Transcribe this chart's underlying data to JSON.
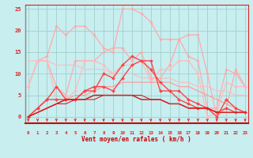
{
  "xlabel": "Vent moyen/en rafales ( km/h )",
  "x_ticks": [
    0,
    1,
    2,
    3,
    4,
    5,
    6,
    7,
    8,
    9,
    10,
    11,
    12,
    13,
    14,
    15,
    16,
    17,
    18,
    19,
    20,
    21,
    22,
    23
  ],
  "ylim": [
    -1.5,
    26
  ],
  "xlim": [
    -0.3,
    23.3
  ],
  "bg_color": "#c8eef0",
  "grid_color": "#a0d0cc",
  "series": [
    {
      "data": [
        7,
        13,
        14,
        21,
        19,
        21,
        21,
        19,
        16,
        15,
        25,
        25,
        24,
        22,
        18,
        18,
        18,
        19,
        19,
        10,
        0,
        2,
        11,
        7
      ],
      "color": "#ffaaaa",
      "marker": "D",
      "markersize": 1.8,
      "linewidth": 0.9,
      "alpha": 1.0
    },
    {
      "data": [
        7,
        13,
        13,
        7,
        5,
        13,
        13,
        13,
        15,
        16,
        16,
        13,
        15,
        9,
        9,
        12,
        18,
        14,
        13,
        2,
        2,
        11,
        10,
        7
      ],
      "color": "#ffaaaa",
      "marker": "D",
      "markersize": 1.8,
      "linewidth": 0.9,
      "alpha": 1.0
    },
    {
      "data": [
        7,
        13,
        13,
        4,
        4,
        6,
        13,
        13,
        12,
        10,
        12,
        12,
        13,
        8,
        11,
        11,
        13,
        13,
        10,
        0,
        1,
        8,
        7,
        7
      ],
      "color": "#ffbbbb",
      "marker": "D",
      "markersize": 1.8,
      "linewidth": 0.9,
      "alpha": 1.0
    },
    {
      "data": [
        13,
        13,
        13,
        12,
        12,
        12,
        11,
        11,
        11,
        10,
        10,
        10,
        9,
        9,
        9,
        9,
        8,
        8,
        7,
        7,
        6,
        6,
        5,
        5
      ],
      "color": "#ffbbbb",
      "marker": null,
      "markersize": 0,
      "linewidth": 0.9,
      "alpha": 0.9
    },
    {
      "data": [
        0,
        1,
        2,
        3,
        4,
        5,
        5,
        6,
        7,
        7,
        8,
        8,
        8,
        8,
        8,
        8,
        7,
        7,
        6,
        5,
        4,
        3,
        2,
        1
      ],
      "color": "#ff9999",
      "marker": null,
      "markersize": 0,
      "linewidth": 0.9,
      "alpha": 0.9
    },
    {
      "data": [
        0,
        2,
        4,
        7,
        4,
        4,
        6,
        6,
        10,
        9,
        12,
        14,
        13,
        13,
        6,
        6,
        6,
        4,
        3,
        2,
        0,
        4,
        2,
        1
      ],
      "color": "#ff4444",
      "marker": "D",
      "markersize": 2.0,
      "linewidth": 1.0,
      "alpha": 1.0
    },
    {
      "data": [
        0,
        2,
        4,
        4,
        4,
        4,
        6,
        7,
        7,
        6,
        9,
        12,
        13,
        11,
        8,
        6,
        4,
        3,
        2,
        2,
        1,
        2,
        1,
        1
      ],
      "color": "#ff4444",
      "marker": "D",
      "markersize": 2.0,
      "linewidth": 1.0,
      "alpha": 1.0
    },
    {
      "data": [
        0,
        1,
        2,
        3,
        4,
        4,
        4,
        5,
        5,
        5,
        5,
        5,
        4,
        4,
        4,
        3,
        3,
        2,
        2,
        2,
        1,
        1,
        1,
        1
      ],
      "color": "#cc1111",
      "marker": null,
      "markersize": 0,
      "linewidth": 1.0,
      "alpha": 1.0
    },
    {
      "data": [
        0,
        1,
        2,
        3,
        3,
        4,
        4,
        4,
        5,
        5,
        5,
        5,
        5,
        4,
        4,
        3,
        3,
        2,
        2,
        2,
        1,
        1,
        1,
        1
      ],
      "color": "#dd2222",
      "marker": null,
      "markersize": 0,
      "linewidth": 0.8,
      "alpha": 1.0
    }
  ],
  "arrow_color": "#dd2222",
  "tick_color": "#dd2222",
  "label_color": "#cc0000",
  "yticks": [
    0,
    5,
    10,
    15,
    20,
    25
  ]
}
